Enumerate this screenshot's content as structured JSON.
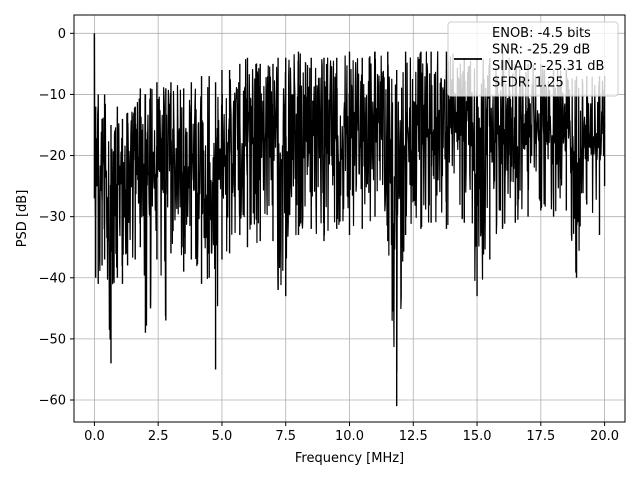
{
  "chart_data": {
    "type": "line",
    "title": "",
    "xlabel": "Frequency [MHz]",
    "ylabel": "PSD [dB]",
    "xlim": [
      -0.8,
      20.8
    ],
    "ylim": [
      -63.6,
      3.0
    ],
    "xticks": [
      0.0,
      2.5,
      5.0,
      7.5,
      10.0,
      12.5,
      15.0,
      17.5,
      20.0
    ],
    "xtick_labels": [
      "0.0",
      "2.5",
      "5.0",
      "7.5",
      "10.0",
      "12.5",
      "15.0",
      "17.5",
      "20.0"
    ],
    "yticks": [
      0,
      -10,
      -20,
      -30,
      -40,
      -50,
      -60
    ],
    "ytick_labels": [
      "0",
      "−10",
      "−20",
      "−30",
      "−40",
      "−50",
      "−60"
    ],
    "grid": true,
    "legend_position": "top-right",
    "legend_lines": [
      "ENOB: -4.5 bits",
      "SNR: -25.29 dB",
      "SINAD: -25.31 dB",
      "SFDR: 1.25"
    ],
    "line_color": "#000000",
    "series": [
      {
        "x_start": 0.0,
        "x_end": 20.0,
        "envelope": [
          [
            0.0,
            0.0,
            -27
          ],
          [
            0.05,
            -12,
            -40
          ],
          [
            0.15,
            -10,
            -41
          ],
          [
            0.3,
            -14,
            -38
          ],
          [
            0.4,
            -10,
            -37
          ],
          [
            0.65,
            -15,
            -54
          ],
          [
            0.9,
            -12,
            -40
          ],
          [
            1.1,
            -14,
            -41
          ],
          [
            1.3,
            -13,
            -38
          ],
          [
            1.6,
            -12,
            -37
          ],
          [
            1.8,
            -9,
            -35
          ],
          [
            2.0,
            -10,
            -49
          ],
          [
            2.2,
            -9,
            -45
          ],
          [
            2.45,
            -8,
            -37
          ],
          [
            2.8,
            -9,
            -47
          ],
          [
            3.0,
            -8,
            -36
          ],
          [
            3.5,
            -9,
            -39
          ],
          [
            3.8,
            -8,
            -37
          ],
          [
            4.2,
            -7,
            -41
          ],
          [
            4.5,
            -7,
            -40
          ],
          [
            4.75,
            -8,
            -55
          ],
          [
            5.0,
            -6,
            -37
          ],
          [
            5.3,
            -6,
            -36
          ],
          [
            5.7,
            -5,
            -33
          ],
          [
            6.0,
            -4,
            -35
          ],
          [
            6.5,
            -5,
            -34
          ],
          [
            7.0,
            -5,
            -34
          ],
          [
            7.2,
            -4,
            -42
          ],
          [
            7.5,
            -4,
            -43
          ],
          [
            8.0,
            -3,
            -33
          ],
          [
            8.5,
            -4,
            -32
          ],
          [
            9.0,
            -4,
            -34
          ],
          [
            9.5,
            -4,
            -32
          ],
          [
            10.0,
            -3,
            -33
          ],
          [
            10.5,
            -4,
            -32
          ],
          [
            11.0,
            -3,
            -30
          ],
          [
            11.5,
            -3,
            -34
          ],
          [
            11.85,
            -6,
            -61
          ],
          [
            12.2,
            -3,
            -33
          ],
          [
            12.8,
            -3,
            -32
          ],
          [
            13.2,
            -3,
            -31
          ],
          [
            13.8,
            -3,
            -32
          ],
          [
            14.5,
            -4,
            -31
          ],
          [
            15.0,
            -4,
            -43
          ],
          [
            15.5,
            -4,
            -37
          ],
          [
            16.0,
            -3,
            -32
          ],
          [
            16.5,
            -5,
            -31
          ],
          [
            17.0,
            -5,
            -30
          ],
          [
            17.5,
            -5,
            -29
          ],
          [
            18.0,
            -6,
            -30
          ],
          [
            18.5,
            -6,
            -29
          ],
          [
            18.9,
            -7,
            -40
          ],
          [
            19.3,
            -7,
            -28
          ],
          [
            19.8,
            -7,
            -33
          ],
          [
            20.0,
            -7,
            -25
          ]
        ]
      }
    ]
  }
}
